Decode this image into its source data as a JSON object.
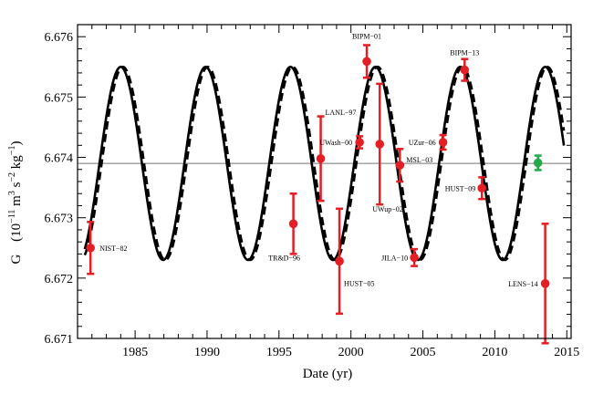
{
  "chart_data": {
    "type": "scatter",
    "title": "",
    "xlabel": "Date (yr)",
    "ylabel_parts": {
      "symbol": "G",
      "open": "(10",
      "exp1": "−11",
      "mid1": " m",
      "exp2": "3",
      "mid2": " s",
      "exp3": "−2",
      "mid3": " kg",
      "exp4": "−1",
      "close": ")"
    },
    "xlim": [
      1981,
      2015.3
    ],
    "ylim": [
      6.671,
      6.6762
    ],
    "x_ticks": [
      1985,
      1990,
      1995,
      2000,
      2005,
      2010,
      2015
    ],
    "x_tick_labels": [
      "1985",
      "1990",
      "1995",
      "2000",
      "2005",
      "2010",
      "2015"
    ],
    "y_ticks": [
      6.671,
      6.672,
      6.673,
      6.674,
      6.675,
      6.676
    ],
    "y_tick_labels": [
      "6.671",
      "6.672",
      "6.673",
      "6.674",
      "6.675",
      "6.676"
    ],
    "reference_line_y": 6.6739,
    "fit_curves": [
      {
        "style": "solid",
        "mean": 6.6739,
        "amplitude": 0.0016,
        "period": 5.9,
        "peak_year": 1984.0
      },
      {
        "style": "dashed",
        "mean": 6.6739,
        "amplitude": 0.0016,
        "period": 5.9,
        "peak_year": 1984.15
      }
    ],
    "series": [
      {
        "color": "#e31e24",
        "points": [
          {
            "label": "NIST−82",
            "x": 1981.9,
            "y": 6.6725,
            "err": 0.00043
          },
          {
            "label": "TR&D−96",
            "x": 1996.0,
            "y": 6.6729,
            "err": 0.0005
          },
          {
            "label": "LANL−97",
            "x": 1997.9,
            "y": 6.67398,
            "err": 0.0007
          },
          {
            "label": "HUST−05",
            "x": 1999.2,
            "y": 6.67228,
            "err": 0.00087
          },
          {
            "label": "UWash−00",
            "x": 2000.6,
            "y": 6.67425,
            "err": 0.0001
          },
          {
            "label": "BIPM−01",
            "x": 2001.1,
            "y": 6.67559,
            "err": 0.00027
          },
          {
            "label": "UWup−02",
            "x": 2002.0,
            "y": 6.67422,
            "err": 0.001
          },
          {
            "label": "MSL−03",
            "x": 2003.4,
            "y": 6.67387,
            "err": 0.00027
          },
          {
            "label": "JILA−10",
            "x": 2004.4,
            "y": 6.67234,
            "err": 0.00014
          },
          {
            "label": "UZur−06",
            "x": 2006.4,
            "y": 6.67425,
            "err": 0.00012
          },
          {
            "label": "BIPM−13",
            "x": 2007.9,
            "y": 6.67545,
            "err": 0.00018
          },
          {
            "label": "HUST−09",
            "x": 2009.1,
            "y": 6.67349,
            "err": 0.00018
          },
          {
            "label": "LENS−14",
            "x": 2013.5,
            "y": 6.67191,
            "err": 0.00099
          }
        ]
      },
      {
        "color": "#23a94a",
        "points": [
          {
            "label": "",
            "x": 2013.0,
            "y": 6.67391,
            "err": 0.00012
          }
        ]
      }
    ]
  }
}
